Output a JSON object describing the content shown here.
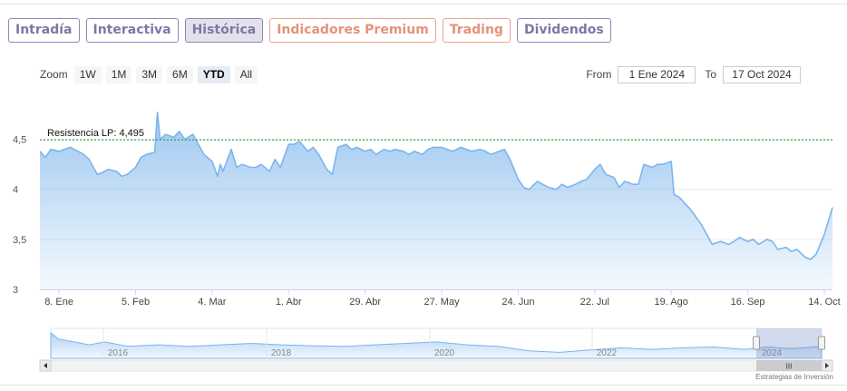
{
  "tabs": [
    {
      "label": "Intradía",
      "name": "tab-intradia",
      "style": "normal"
    },
    {
      "label": "Interactiva",
      "name": "tab-interactiva",
      "style": "normal"
    },
    {
      "label": "Histórica",
      "name": "tab-historica",
      "style": "active"
    },
    {
      "label": "Indicadores Premium",
      "name": "tab-indicadores-premium",
      "style": "orange"
    },
    {
      "label": "Trading",
      "name": "tab-trading",
      "style": "orange"
    },
    {
      "label": "Dividendos",
      "name": "tab-dividendos",
      "style": "normal"
    }
  ],
  "zoom": {
    "label": "Zoom",
    "buttons": [
      {
        "label": "1W",
        "active": false
      },
      {
        "label": "1M",
        "active": false
      },
      {
        "label": "3M",
        "active": false
      },
      {
        "label": "6M",
        "active": false
      },
      {
        "label": "YTD",
        "active": true
      },
      {
        "label": "All",
        "active": false
      }
    ]
  },
  "range": {
    "from_label": "From",
    "from_value": "1 Ene 2024",
    "to_label": "To",
    "to_value": "17 Oct 2024"
  },
  "credit": "Estrategias de Inversión",
  "colors": {
    "line": "#7cb5ec",
    "resistance": "#2e9e3a",
    "tab_border": "#8d88b4",
    "tab_orange": "#eda08b"
  },
  "chart_data": {
    "type": "area",
    "x_domain": [
      "2024-01-01",
      "2024-10-17"
    ],
    "ylim": [
      3,
      4.95
    ],
    "y_ticks": [
      {
        "value": 3,
        "label": "3"
      },
      {
        "value": 3.5,
        "label": "3,5"
      },
      {
        "value": 4,
        "label": "4"
      },
      {
        "value": 4.5,
        "label": "4,5"
      }
    ],
    "x_ticks": [
      {
        "date": "2024-01-08",
        "label": "8. Ene"
      },
      {
        "date": "2024-02-05",
        "label": "5. Feb"
      },
      {
        "date": "2024-03-04",
        "label": "4. Mar"
      },
      {
        "date": "2024-04-01",
        "label": "1. Abr"
      },
      {
        "date": "2024-04-29",
        "label": "29. Abr"
      },
      {
        "date": "2024-05-27",
        "label": "27. May"
      },
      {
        "date": "2024-06-24",
        "label": "24. Jun"
      },
      {
        "date": "2024-07-22",
        "label": "22. Jul"
      },
      {
        "date": "2024-08-19",
        "label": "19. Ago"
      },
      {
        "date": "2024-09-16",
        "label": "16. Sep"
      },
      {
        "date": "2024-10-14",
        "label": "14. Oct"
      }
    ],
    "resistance": {
      "label": "Resistencia LP: 4,495",
      "value": 4.495
    },
    "series": [
      {
        "points": [
          [
            "2024-01-01",
            4.38
          ],
          [
            "2024-01-03",
            4.32
          ],
          [
            "2024-01-05",
            4.4
          ],
          [
            "2024-01-08",
            4.38
          ],
          [
            "2024-01-10",
            4.4
          ],
          [
            "2024-01-12",
            4.42
          ],
          [
            "2024-01-15",
            4.38
          ],
          [
            "2024-01-17",
            4.35
          ],
          [
            "2024-01-19",
            4.3
          ],
          [
            "2024-01-22",
            4.15
          ],
          [
            "2024-01-24",
            4.17
          ],
          [
            "2024-01-26",
            4.2
          ],
          [
            "2024-01-29",
            4.18
          ],
          [
            "2024-01-31",
            4.13
          ],
          [
            "2024-02-02",
            4.15
          ],
          [
            "2024-02-05",
            4.22
          ],
          [
            "2024-02-07",
            4.32
          ],
          [
            "2024-02-09",
            4.35
          ],
          [
            "2024-02-12",
            4.37
          ],
          [
            "2024-02-13",
            4.77
          ],
          [
            "2024-02-14",
            4.5
          ],
          [
            "2024-02-16",
            4.55
          ],
          [
            "2024-02-19",
            4.52
          ],
          [
            "2024-02-21",
            4.58
          ],
          [
            "2024-02-23",
            4.5
          ],
          [
            "2024-02-26",
            4.55
          ],
          [
            "2024-02-28",
            4.45
          ],
          [
            "2024-03-01",
            4.35
          ],
          [
            "2024-03-04",
            4.28
          ],
          [
            "2024-03-06",
            4.13
          ],
          [
            "2024-03-07",
            4.25
          ],
          [
            "2024-03-08",
            4.18
          ],
          [
            "2024-03-11",
            4.4
          ],
          [
            "2024-03-13",
            4.22
          ],
          [
            "2024-03-15",
            4.25
          ],
          [
            "2024-03-18",
            4.22
          ],
          [
            "2024-03-20",
            4.22
          ],
          [
            "2024-03-22",
            4.25
          ],
          [
            "2024-03-25",
            4.18
          ],
          [
            "2024-03-27",
            4.3
          ],
          [
            "2024-03-29",
            4.22
          ],
          [
            "2024-04-01",
            4.45
          ],
          [
            "2024-04-03",
            4.45
          ],
          [
            "2024-04-05",
            4.48
          ],
          [
            "2024-04-08",
            4.38
          ],
          [
            "2024-04-10",
            4.42
          ],
          [
            "2024-04-12",
            4.35
          ],
          [
            "2024-04-15",
            4.2
          ],
          [
            "2024-04-17",
            4.15
          ],
          [
            "2024-04-19",
            4.42
          ],
          [
            "2024-04-22",
            4.45
          ],
          [
            "2024-04-24",
            4.4
          ],
          [
            "2024-04-26",
            4.42
          ],
          [
            "2024-04-29",
            4.38
          ],
          [
            "2024-05-01",
            4.4
          ],
          [
            "2024-05-03",
            4.35
          ],
          [
            "2024-05-06",
            4.4
          ],
          [
            "2024-05-08",
            4.38
          ],
          [
            "2024-05-10",
            4.4
          ],
          [
            "2024-05-13",
            4.38
          ],
          [
            "2024-05-15",
            4.35
          ],
          [
            "2024-05-17",
            4.38
          ],
          [
            "2024-05-20",
            4.35
          ],
          [
            "2024-05-22",
            4.4
          ],
          [
            "2024-05-24",
            4.42
          ],
          [
            "2024-05-27",
            4.42
          ],
          [
            "2024-05-29",
            4.4
          ],
          [
            "2024-05-31",
            4.38
          ],
          [
            "2024-06-03",
            4.42
          ],
          [
            "2024-06-05",
            4.4
          ],
          [
            "2024-06-07",
            4.38
          ],
          [
            "2024-06-10",
            4.4
          ],
          [
            "2024-06-12",
            4.38
          ],
          [
            "2024-06-14",
            4.35
          ],
          [
            "2024-06-17",
            4.38
          ],
          [
            "2024-06-19",
            4.4
          ],
          [
            "2024-06-21",
            4.3
          ],
          [
            "2024-06-24",
            4.1
          ],
          [
            "2024-06-26",
            4.02
          ],
          [
            "2024-06-28",
            4.0
          ],
          [
            "2024-07-01",
            4.08
          ],
          [
            "2024-07-03",
            4.05
          ],
          [
            "2024-07-05",
            4.02
          ],
          [
            "2024-07-08",
            4.0
          ],
          [
            "2024-07-10",
            4.05
          ],
          [
            "2024-07-12",
            4.02
          ],
          [
            "2024-07-15",
            4.05
          ],
          [
            "2024-07-17",
            4.08
          ],
          [
            "2024-07-19",
            4.1
          ],
          [
            "2024-07-22",
            4.2
          ],
          [
            "2024-07-24",
            4.25
          ],
          [
            "2024-07-26",
            4.15
          ],
          [
            "2024-07-29",
            4.12
          ],
          [
            "2024-07-31",
            4.02
          ],
          [
            "2024-08-02",
            4.08
          ],
          [
            "2024-08-05",
            4.05
          ],
          [
            "2024-08-07",
            4.05
          ],
          [
            "2024-08-09",
            4.25
          ],
          [
            "2024-08-12",
            4.22
          ],
          [
            "2024-08-14",
            4.25
          ],
          [
            "2024-08-16",
            4.25
          ],
          [
            "2024-08-19",
            4.28
          ],
          [
            "2024-08-20",
            3.95
          ],
          [
            "2024-08-22",
            3.92
          ],
          [
            "2024-08-26",
            3.8
          ],
          [
            "2024-08-30",
            3.65
          ],
          [
            "2024-09-03",
            3.45
          ],
          [
            "2024-09-06",
            3.48
          ],
          [
            "2024-09-09",
            3.45
          ],
          [
            "2024-09-11",
            3.48
          ],
          [
            "2024-09-13",
            3.52
          ],
          [
            "2024-09-16",
            3.48
          ],
          [
            "2024-09-18",
            3.5
          ],
          [
            "2024-09-20",
            3.45
          ],
          [
            "2024-09-23",
            3.5
          ],
          [
            "2024-09-25",
            3.48
          ],
          [
            "2024-09-27",
            3.4
          ],
          [
            "2024-09-30",
            3.42
          ],
          [
            "2024-10-02",
            3.38
          ],
          [
            "2024-10-04",
            3.4
          ],
          [
            "2024-10-07",
            3.32
          ],
          [
            "2024-10-09",
            3.3
          ],
          [
            "2024-10-11",
            3.35
          ],
          [
            "2024-10-14",
            3.55
          ],
          [
            "2024-10-17",
            3.82
          ]
        ]
      }
    ],
    "navigator": {
      "year_labels": [
        "2016",
        "2018",
        "2020",
        "2022",
        "2024"
      ],
      "scrollbar_grip": "III"
    }
  }
}
